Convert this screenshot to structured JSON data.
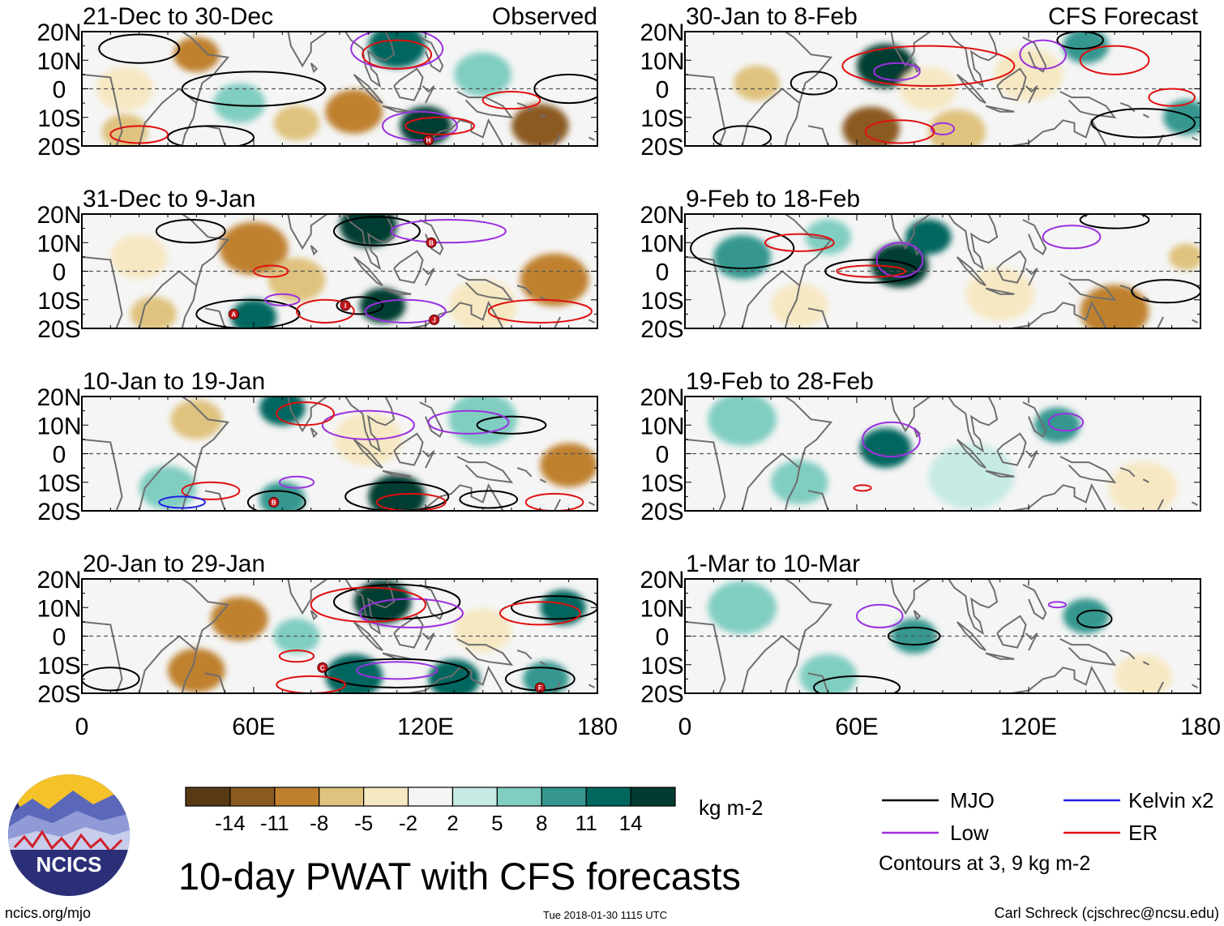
{
  "colors": {
    "frame": "#000000",
    "coast": "#6e6e6e",
    "equator": "#555555",
    "mjo": "#000000",
    "low": "#9b30e0",
    "kelvin": "#1f1fe6",
    "er": "#e01010",
    "marker": "#c0161c",
    "logo_bg": "#2b2f78",
    "logo_sun": "#f5c22a"
  },
  "header": {
    "observed_label": "Observed",
    "forecast_label": "CFS Forecast"
  },
  "lat_labels": [
    "20N",
    "10N",
    "0",
    "10S",
    "20S"
  ],
  "lon_labels": [
    "0",
    "60E",
    "120E",
    "180"
  ],
  "chart_data": [
    {
      "type": "heatmap",
      "title": "21-Dec to 30-Dec",
      "group": "Observed",
      "column": 0,
      "row": 0,
      "xlim": [
        0,
        180
      ],
      "ylim": [
        -20,
        20
      ],
      "anomalies": [
        {
          "lon": 40,
          "lat": 12,
          "v": -9,
          "r": 8
        },
        {
          "lon": 15,
          "lat": 0,
          "v": -5,
          "r": 10
        },
        {
          "lon": 55,
          "lat": -5,
          "v": 5,
          "r": 9
        },
        {
          "lon": 95,
          "lat": -8,
          "v": -11,
          "r": 10
        },
        {
          "lon": 110,
          "lat": 15,
          "v": 11,
          "r": 10
        },
        {
          "lon": 120,
          "lat": -13,
          "v": 14,
          "r": 9
        },
        {
          "lon": 160,
          "lat": -13,
          "v": -14,
          "r": 10
        },
        {
          "lon": 140,
          "lat": 5,
          "v": 5,
          "r": 10
        },
        {
          "lon": 75,
          "lat": -12,
          "v": -8,
          "r": 8
        },
        {
          "lon": 15,
          "lat": -15,
          "v": -8,
          "r": 8
        }
      ],
      "contours": [
        {
          "kind": "MJO",
          "lon": 20,
          "lat": 14,
          "rx": 14,
          "ry": 5
        },
        {
          "kind": "MJO",
          "lon": 60,
          "lat": 0,
          "rx": 25,
          "ry": 6
        },
        {
          "kind": "MJO",
          "lon": 45,
          "lat": -17,
          "rx": 15,
          "ry": 4
        },
        {
          "kind": "MJO",
          "lon": 170,
          "lat": 0,
          "rx": 12,
          "ry": 5
        },
        {
          "kind": "Low",
          "lon": 110,
          "lat": 14,
          "rx": 16,
          "ry": 7
        },
        {
          "kind": "Low",
          "lon": 118,
          "lat": -13,
          "rx": 13,
          "ry": 5
        },
        {
          "kind": "ER",
          "lon": 125,
          "lat": -13,
          "rx": 12,
          "ry": 3
        },
        {
          "kind": "ER",
          "lon": 110,
          "lat": 12,
          "rx": 12,
          "ry": 5
        },
        {
          "kind": "ER",
          "lon": 150,
          "lat": -4,
          "rx": 10,
          "ry": 3
        },
        {
          "kind": "ER",
          "lon": 20,
          "lat": -16,
          "rx": 10,
          "ry": 3
        }
      ],
      "markers": [
        {
          "label": "H",
          "lon": 121,
          "lat": -18
        }
      ]
    },
    {
      "type": "heatmap",
      "title": "31-Dec to 9-Jan",
      "group": "Observed",
      "column": 0,
      "row": 1,
      "xlim": [
        0,
        180
      ],
      "ylim": [
        -20,
        20
      ],
      "anomalies": [
        {
          "lon": 60,
          "lat": 8,
          "v": -11,
          "r": 12
        },
        {
          "lon": 75,
          "lat": -3,
          "v": -8,
          "r": 10
        },
        {
          "lon": 100,
          "lat": 16,
          "v": 14,
          "r": 10
        },
        {
          "lon": 105,
          "lat": -12,
          "v": 14,
          "r": 8
        },
        {
          "lon": 60,
          "lat": -16,
          "v": 11,
          "r": 8
        },
        {
          "lon": 165,
          "lat": -3,
          "v": -11,
          "r": 12
        },
        {
          "lon": 140,
          "lat": -12,
          "v": -5,
          "r": 12
        },
        {
          "lon": 20,
          "lat": 5,
          "v": -5,
          "r": 10
        },
        {
          "lon": 25,
          "lat": -15,
          "v": -8,
          "r": 8
        }
      ],
      "contours": [
        {
          "kind": "MJO",
          "lon": 38,
          "lat": 14,
          "rx": 12,
          "ry": 4
        },
        {
          "kind": "MJO",
          "lon": 58,
          "lat": -15,
          "rx": 18,
          "ry": 5
        },
        {
          "kind": "MJO",
          "lon": 103,
          "lat": 14,
          "rx": 15,
          "ry": 5
        },
        {
          "kind": "MJO",
          "lon": 97,
          "lat": -12,
          "rx": 8,
          "ry": 3
        },
        {
          "kind": "Low",
          "lon": 128,
          "lat": 14,
          "rx": 20,
          "ry": 4
        },
        {
          "kind": "Low",
          "lon": 113,
          "lat": -14,
          "rx": 14,
          "ry": 4
        },
        {
          "kind": "Low",
          "lon": 70,
          "lat": -10,
          "rx": 6,
          "ry": 2
        },
        {
          "kind": "ER",
          "lon": 66,
          "lat": 0,
          "rx": 6,
          "ry": 2
        },
        {
          "kind": "ER",
          "lon": 160,
          "lat": -14,
          "rx": 18,
          "ry": 4
        },
        {
          "kind": "ER",
          "lon": 85,
          "lat": -14,
          "rx": 10,
          "ry": 4
        }
      ],
      "markers": [
        {
          "label": "A",
          "lon": 53,
          "lat": -15
        },
        {
          "label": "I",
          "lon": 92,
          "lat": -12
        },
        {
          "label": "B",
          "lon": 122,
          "lat": 10
        },
        {
          "label": "J",
          "lon": 123,
          "lat": -17
        }
      ]
    },
    {
      "type": "heatmap",
      "title": "10-Jan to 19-Jan",
      "group": "Observed",
      "column": 0,
      "row": 2,
      "xlim": [
        0,
        180
      ],
      "ylim": [
        -20,
        20
      ],
      "anomalies": [
        {
          "lon": 70,
          "lat": 16,
          "v": 11,
          "r": 8
        },
        {
          "lon": 40,
          "lat": 12,
          "v": -8,
          "r": 9
        },
        {
          "lon": 110,
          "lat": -15,
          "v": 14,
          "r": 10
        },
        {
          "lon": 70,
          "lat": -16,
          "v": 8,
          "r": 8
        },
        {
          "lon": 170,
          "lat": -4,
          "v": -11,
          "r": 10
        },
        {
          "lon": 100,
          "lat": 5,
          "v": -5,
          "r": 12
        },
        {
          "lon": 140,
          "lat": 12,
          "v": 5,
          "r": 12
        },
        {
          "lon": 30,
          "lat": -12,
          "v": 5,
          "r": 10
        }
      ],
      "contours": [
        {
          "kind": "MJO",
          "lon": 110,
          "lat": -15,
          "rx": 18,
          "ry": 5
        },
        {
          "kind": "MJO",
          "lon": 68,
          "lat": -17,
          "rx": 10,
          "ry": 4
        },
        {
          "kind": "MJO",
          "lon": 150,
          "lat": 10,
          "rx": 12,
          "ry": 3
        },
        {
          "kind": "MJO",
          "lon": 142,
          "lat": -16,
          "rx": 10,
          "ry": 3
        },
        {
          "kind": "Low",
          "lon": 100,
          "lat": 10,
          "rx": 16,
          "ry": 5
        },
        {
          "kind": "Low",
          "lon": 135,
          "lat": 11,
          "rx": 14,
          "ry": 4
        },
        {
          "kind": "Low",
          "lon": 75,
          "lat": -10,
          "rx": 6,
          "ry": 2
        },
        {
          "kind": "ER",
          "lon": 78,
          "lat": 14,
          "rx": 10,
          "ry": 4
        },
        {
          "kind": "ER",
          "lon": 45,
          "lat": -13,
          "rx": 10,
          "ry": 3
        },
        {
          "kind": "ER",
          "lon": 165,
          "lat": -17,
          "rx": 10,
          "ry": 3
        },
        {
          "kind": "ER",
          "lon": 115,
          "lat": -17,
          "rx": 12,
          "ry": 3
        },
        {
          "kind": "Kelvin",
          "lon": 35,
          "lat": -17,
          "rx": 8,
          "ry": 2
        }
      ],
      "markers": [
        {
          "label": "B",
          "lon": 67,
          "lat": -17
        }
      ]
    },
    {
      "type": "heatmap",
      "title": "20-Jan to 29-Jan",
      "group": "Observed",
      "column": 0,
      "row": 3,
      "xlim": [
        0,
        180
      ],
      "ylim": [
        -20,
        20
      ],
      "anomalies": [
        {
          "lon": 55,
          "lat": 6,
          "v": -11,
          "r": 10
        },
        {
          "lon": 40,
          "lat": -12,
          "v": -11,
          "r": 10
        },
        {
          "lon": 105,
          "lat": 12,
          "v": 14,
          "r": 10
        },
        {
          "lon": 95,
          "lat": -14,
          "v": 11,
          "r": 10
        },
        {
          "lon": 130,
          "lat": -15,
          "v": 11,
          "r": 9
        },
        {
          "lon": 168,
          "lat": 10,
          "v": 11,
          "r": 8
        },
        {
          "lon": 162,
          "lat": -15,
          "v": 8,
          "r": 8
        },
        {
          "lon": 75,
          "lat": 0,
          "v": 5,
          "r": 8
        },
        {
          "lon": 140,
          "lat": 2,
          "v": -5,
          "r": 10
        }
      ],
      "contours": [
        {
          "kind": "MJO",
          "lon": 110,
          "lat": 12,
          "rx": 22,
          "ry": 6
        },
        {
          "kind": "MJO",
          "lon": 165,
          "lat": 10,
          "rx": 15,
          "ry": 4
        },
        {
          "kind": "MJO",
          "lon": 110,
          "lat": -13,
          "rx": 25,
          "ry": 5
        },
        {
          "kind": "MJO",
          "lon": 160,
          "lat": -15,
          "rx": 12,
          "ry": 4
        },
        {
          "kind": "MJO",
          "lon": 10,
          "lat": -15,
          "rx": 10,
          "ry": 4
        },
        {
          "kind": "Low",
          "lon": 115,
          "lat": 8,
          "rx": 18,
          "ry": 5
        },
        {
          "kind": "Low",
          "lon": 110,
          "lat": -12,
          "rx": 14,
          "ry": 3
        },
        {
          "kind": "ER",
          "lon": 100,
          "lat": 11,
          "rx": 20,
          "ry": 6
        },
        {
          "kind": "ER",
          "lon": 160,
          "lat": 8,
          "rx": 14,
          "ry": 4
        },
        {
          "kind": "ER",
          "lon": 75,
          "lat": -7,
          "rx": 6,
          "ry": 2
        },
        {
          "kind": "ER",
          "lon": 80,
          "lat": -17,
          "rx": 12,
          "ry": 3
        }
      ],
      "markers": [
        {
          "label": "C",
          "lon": 84,
          "lat": -11
        },
        {
          "label": "F",
          "lon": 160,
          "lat": -18
        }
      ]
    },
    {
      "type": "heatmap",
      "title": "30-Jan to 8-Feb",
      "group": "CFS Forecast",
      "column": 1,
      "row": 0,
      "xlim": [
        0,
        180
      ],
      "ylim": [
        -20,
        20
      ],
      "anomalies": [
        {
          "lon": 70,
          "lat": 8,
          "v": 14,
          "r": 10
        },
        {
          "lon": 65,
          "lat": -14,
          "v": -14,
          "r": 10
        },
        {
          "lon": 25,
          "lat": 2,
          "v": -8,
          "r": 8
        },
        {
          "lon": 140,
          "lat": 15,
          "v": 8,
          "r": 8
        },
        {
          "lon": 95,
          "lat": -15,
          "v": -8,
          "r": 10
        },
        {
          "lon": 175,
          "lat": -10,
          "v": 8,
          "r": 8
        },
        {
          "lon": 120,
          "lat": 5,
          "v": -5,
          "r": 12
        },
        {
          "lon": 85,
          "lat": 0,
          "v": -5,
          "r": 10
        }
      ],
      "contours": [
        {
          "kind": "MJO",
          "lon": 45,
          "lat": 2,
          "rx": 8,
          "ry": 4
        },
        {
          "kind": "MJO",
          "lon": 160,
          "lat": -12,
          "rx": 18,
          "ry": 5
        },
        {
          "kind": "MJO",
          "lon": 20,
          "lat": -17,
          "rx": 10,
          "ry": 4
        },
        {
          "kind": "MJO",
          "lon": 138,
          "lat": 17,
          "rx": 8,
          "ry": 3
        },
        {
          "kind": "Low",
          "lon": 74,
          "lat": 6,
          "rx": 8,
          "ry": 3
        },
        {
          "kind": "Low",
          "lon": 125,
          "lat": 12,
          "rx": 8,
          "ry": 5
        },
        {
          "kind": "Low",
          "lon": 90,
          "lat": -14,
          "rx": 4,
          "ry": 2
        },
        {
          "kind": "ER",
          "lon": 85,
          "lat": 8,
          "rx": 30,
          "ry": 7
        },
        {
          "kind": "ER",
          "lon": 150,
          "lat": 10,
          "rx": 12,
          "ry": 5
        },
        {
          "kind": "ER",
          "lon": 170,
          "lat": -3,
          "rx": 8,
          "ry": 3
        },
        {
          "kind": "ER",
          "lon": 75,
          "lat": -15,
          "rx": 12,
          "ry": 4
        }
      ],
      "markers": []
    },
    {
      "type": "heatmap",
      "title": "9-Feb to 18-Feb",
      "group": "CFS Forecast",
      "column": 1,
      "row": 1,
      "xlim": [
        0,
        180
      ],
      "ylim": [
        -20,
        20
      ],
      "anomalies": [
        {
          "lon": 75,
          "lat": 2,
          "v": 14,
          "r": 10
        },
        {
          "lon": 85,
          "lat": 12,
          "v": 11,
          "r": 8
        },
        {
          "lon": 20,
          "lat": 5,
          "v": 8,
          "r": 10
        },
        {
          "lon": 150,
          "lat": -14,
          "v": -11,
          "r": 12
        },
        {
          "lon": 110,
          "lat": -8,
          "v": -5,
          "r": 12
        },
        {
          "lon": 40,
          "lat": -12,
          "v": -5,
          "r": 10
        },
        {
          "lon": 175,
          "lat": 5,
          "v": -8,
          "r": 6
        },
        {
          "lon": 50,
          "lat": 12,
          "v": 5,
          "r": 8
        }
      ],
      "contours": [
        {
          "kind": "MJO",
          "lon": 65,
          "lat": 0,
          "rx": 16,
          "ry": 4
        },
        {
          "kind": "MJO",
          "lon": 20,
          "lat": 8,
          "rx": 18,
          "ry": 7
        },
        {
          "kind": "MJO",
          "lon": 168,
          "lat": -7,
          "rx": 12,
          "ry": 4
        },
        {
          "kind": "MJO",
          "lon": 150,
          "lat": 18,
          "rx": 12,
          "ry": 3
        },
        {
          "kind": "Low",
          "lon": 75,
          "lat": 4,
          "rx": 8,
          "ry": 6
        },
        {
          "kind": "Low",
          "lon": 135,
          "lat": 12,
          "rx": 10,
          "ry": 4
        },
        {
          "kind": "ER",
          "lon": 40,
          "lat": 10,
          "rx": 12,
          "ry": 3
        },
        {
          "kind": "ER",
          "lon": 65,
          "lat": 0,
          "rx": 12,
          "ry": 2
        }
      ],
      "markers": []
    },
    {
      "type": "heatmap",
      "title": "19-Feb to 28-Feb",
      "group": "CFS Forecast",
      "column": 1,
      "row": 2,
      "xlim": [
        0,
        180
      ],
      "ylim": [
        -20,
        20
      ],
      "anomalies": [
        {
          "lon": 70,
          "lat": 2,
          "v": 11,
          "r": 9
        },
        {
          "lon": 20,
          "lat": 12,
          "v": 5,
          "r": 12
        },
        {
          "lon": 130,
          "lat": 10,
          "v": 8,
          "r": 8
        },
        {
          "lon": 160,
          "lat": -12,
          "v": -5,
          "r": 12
        },
        {
          "lon": 100,
          "lat": -8,
          "v": 2,
          "r": 15
        },
        {
          "lon": 40,
          "lat": -10,
          "v": 5,
          "r": 10
        }
      ],
      "contours": [
        {
          "kind": "Low",
          "lon": 72,
          "lat": 5,
          "rx": 10,
          "ry": 6
        },
        {
          "kind": "Low",
          "lon": 133,
          "lat": 11,
          "rx": 6,
          "ry": 3
        },
        {
          "kind": "ER",
          "lon": 62,
          "lat": -12,
          "rx": 3,
          "ry": 1
        }
      ],
      "markers": []
    },
    {
      "type": "heatmap",
      "title": "1-Mar to 10-Mar",
      "group": "CFS Forecast",
      "column": 1,
      "row": 3,
      "xlim": [
        0,
        180
      ],
      "ylim": [
        -20,
        20
      ],
      "anomalies": [
        {
          "lon": 80,
          "lat": 0,
          "v": 8,
          "r": 8
        },
        {
          "lon": 140,
          "lat": 7,
          "v": 8,
          "r": 8
        },
        {
          "lon": 20,
          "lat": 10,
          "v": 5,
          "r": 12
        },
        {
          "lon": 160,
          "lat": -14,
          "v": -5,
          "r": 10
        },
        {
          "lon": 50,
          "lat": -14,
          "v": 5,
          "r": 10
        }
      ],
      "contours": [
        {
          "kind": "MJO",
          "lon": 80,
          "lat": 0,
          "rx": 9,
          "ry": 3
        },
        {
          "kind": "MJO",
          "lon": 143,
          "lat": 6,
          "rx": 6,
          "ry": 3
        },
        {
          "kind": "MJO",
          "lon": 60,
          "lat": -18,
          "rx": 15,
          "ry": 4
        },
        {
          "kind": "Low",
          "lon": 68,
          "lat": 7,
          "rx": 8,
          "ry": 4
        },
        {
          "kind": "Low",
          "lon": 130,
          "lat": 11,
          "rx": 3,
          "ry": 1
        }
      ],
      "markers": []
    }
  ],
  "colorbar": {
    "colors": [
      "#573a14",
      "#8b5a20",
      "#bf812d",
      "#dfc27d",
      "#f6e8c3",
      "#f5f5f5",
      "#c7eae5",
      "#80cdc1",
      "#35978f",
      "#01665e",
      "#003c30"
    ],
    "ticks": [
      "-14",
      "-11",
      "-8",
      "-5",
      "-2",
      "2",
      "5",
      "8",
      "11",
      "14"
    ],
    "units": "kg m-2"
  },
  "legend": {
    "mjo": "MJO",
    "low": "Low",
    "kelvin": "Kelvin x2",
    "er": "ER",
    "note": "Contours at 3, 9 kg m-2"
  },
  "footer": {
    "logo_text": "NCICS",
    "title": "10-day PWAT with CFS forecasts",
    "url": "ncics.org/mjo",
    "timestamp": "Tue 2018-01-30 1115 UTC",
    "author": "Carl Schreck (cjschrec@ncsu.edu)"
  }
}
